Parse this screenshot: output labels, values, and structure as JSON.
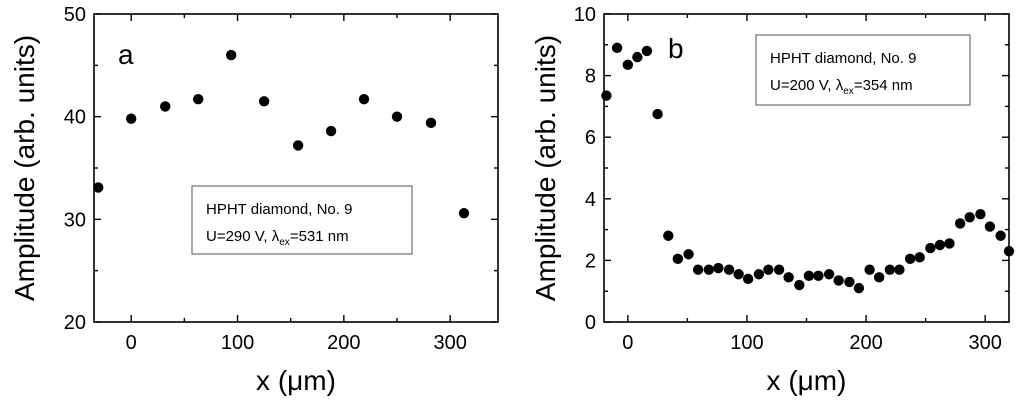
{
  "chart_data": [
    {
      "type": "scatter",
      "panel_label": "a",
      "xlabel_prefix": "x (",
      "xlabel_mu": "μ",
      "xlabel_suffix": "m)",
      "ylabel": "Amplitude (arb. units)",
      "xlim": [
        -35,
        345
      ],
      "ylim": [
        20,
        50
      ],
      "xticks": [
        0,
        100,
        200,
        300
      ],
      "xtick_labels": [
        "0",
        "100",
        "200",
        "300"
      ],
      "yticks": [
        20,
        30,
        40,
        50
      ],
      "ytick_labels": [
        "20",
        "30",
        "40",
        "50"
      ],
      "grid": false,
      "legend": {
        "placement": "center",
        "line1": "HPHT diamond, No. 9",
        "line2_prefix": "U=290 V, ",
        "line2_lambda": "λ",
        "line2_sub": "ex",
        "line2_suffix": "=531 nm"
      },
      "series": [
        {
          "x": [
            -31,
            0,
            32,
            63,
            94,
            125,
            157,
            188,
            219,
            250,
            282,
            313
          ],
          "y": [
            33.1,
            39.8,
            41.0,
            41.7,
            46.0,
            41.5,
            37.2,
            38.6,
            41.7,
            40.0,
            39.4,
            30.6
          ]
        }
      ]
    },
    {
      "type": "scatter",
      "panel_label": "b",
      "xlabel_prefix": "x (",
      "xlabel_mu": "μ",
      "xlabel_suffix": "m)",
      "ylabel": "Amplitude (arb. units)",
      "xlim": [
        -20,
        320
      ],
      "ylim": [
        0,
        10
      ],
      "xticks": [
        0,
        100,
        200,
        300
      ],
      "xtick_labels": [
        "0",
        "100",
        "200",
        "300"
      ],
      "yticks": [
        0,
        2,
        4,
        6,
        8,
        10
      ],
      "ytick_labels": [
        "0",
        "2",
        "4",
        "6",
        "8",
        "10"
      ],
      "grid": false,
      "legend": {
        "placement": "top-right",
        "line1": "HPHT diamond, No. 9",
        "line2_prefix": "U=200 V, ",
        "line2_lambda": "λ",
        "line2_sub": "ex",
        "line2_suffix": "=354 nm"
      },
      "series": [
        {
          "x": [
            -18,
            -9,
            0,
            8,
            16,
            25,
            34,
            42,
            51,
            59,
            68,
            76,
            85,
            93,
            101,
            110,
            118,
            127,
            135,
            144,
            152,
            160,
            169,
            177,
            186,
            194,
            203,
            211,
            220,
            228,
            237,
            245,
            254,
            262,
            270,
            279,
            287,
            296,
            304,
            313,
            320
          ],
          "y": [
            7.35,
            8.9,
            8.35,
            8.6,
            8.8,
            6.75,
            2.8,
            2.05,
            2.2,
            1.7,
            1.7,
            1.75,
            1.7,
            1.55,
            1.4,
            1.55,
            1.7,
            1.7,
            1.45,
            1.2,
            1.5,
            1.5,
            1.55,
            1.35,
            1.3,
            1.1,
            1.7,
            1.45,
            1.7,
            1.7,
            2.05,
            2.1,
            2.4,
            2.5,
            2.55,
            3.2,
            3.4,
            3.5,
            3.1,
            2.8,
            2.3
          ]
        }
      ]
    }
  ]
}
